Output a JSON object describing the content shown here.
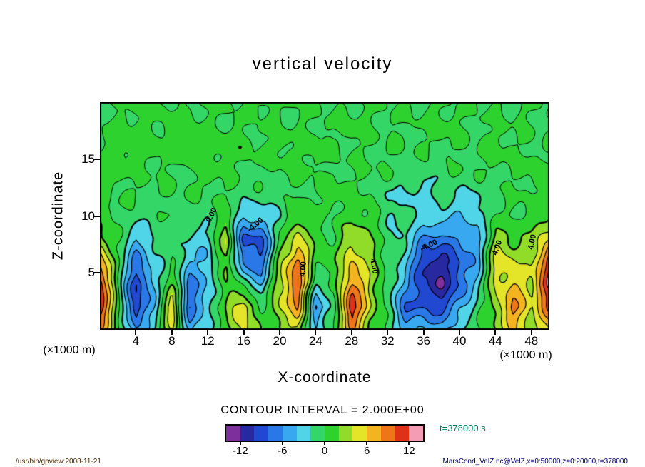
{
  "page": {
    "background": "#ffffff",
    "text_color": "#000000"
  },
  "title": "vertical velocity",
  "axes": {
    "x_label": "X-coordinate",
    "y_label": "Z-coordinate",
    "x_unit": "(×1000 m)",
    "y_unit": "(×1000 m)",
    "x_ticks": [
      4,
      8,
      12,
      16,
      20,
      24,
      28,
      32,
      36,
      40,
      44,
      48
    ],
    "y_ticks": [
      5,
      10,
      15
    ],
    "x_range": [
      0,
      50
    ],
    "z_range": [
      0,
      20
    ]
  },
  "contour_info": "CONTOUR INTERVAL = 2.000E+00",
  "time_label": "t=378000 s",
  "time_label_color": "#007a5e",
  "footer_left": "/usr/bin/gpview  2008-11-21",
  "footer_left_color": "#4a2a00",
  "footer_right": "MarsCond_VelZ.nc@VelZ,x=0:50000,z=0:20000,t=378000",
  "footer_right_color": "#000066",
  "colorbar": {
    "min": -14,
    "max": 14,
    "interval": 2,
    "colors": [
      "#7d2f9c",
      "#2828a0",
      "#2048d0",
      "#2a78e8",
      "#38a8f0",
      "#50d4e8",
      "#34d668",
      "#2ed22e",
      "#90dc28",
      "#e4e428",
      "#f4b420",
      "#ee7618",
      "#e03018",
      "#f49cb4"
    ],
    "ticks": [
      {
        "value": -12,
        "label": "-12"
      },
      {
        "value": -6,
        "label": "-6"
      },
      {
        "value": 0,
        "label": "0"
      },
      {
        "value": 6,
        "label": "6"
      },
      {
        "value": 12,
        "label": "12"
      }
    ]
  },
  "chart_data": {
    "type": "heatmap",
    "render_style": "filled-contour",
    "title": "vertical velocity",
    "xlabel": "X-coordinate (×1000 m)",
    "ylabel": "Z-coordinate (×1000 m)",
    "contour_interval": 2.0,
    "contour_levels": [
      -12,
      -10,
      -8,
      -6,
      -4,
      -2,
      0,
      2,
      4,
      6,
      8,
      10,
      12
    ],
    "x": [
      0,
      2,
      4,
      6,
      8,
      10,
      12,
      14,
      16,
      18,
      20,
      22,
      24,
      26,
      28,
      30,
      32,
      34,
      36,
      38,
      40,
      42,
      44,
      46,
      48,
      50
    ],
    "z": [
      0,
      2,
      4,
      6,
      8,
      10,
      12,
      14,
      16,
      18,
      20
    ],
    "values": [
      [
        8,
        1,
        -6,
        -2,
        4,
        -5,
        -2,
        1,
        5,
        1,
        2,
        4,
        -4,
        0,
        8,
        2,
        0,
        -5,
        -4,
        -5,
        -2,
        0,
        2,
        6,
        3,
        6
      ],
      [
        12,
        1,
        -10,
        -4,
        6,
        -8,
        -3,
        2,
        6,
        -1,
        4,
        8,
        -6,
        -1,
        12,
        4,
        -1,
        -8,
        -8,
        -9,
        -5,
        -1,
        3,
        9,
        4,
        10
      ],
      [
        12,
        0,
        -10,
        -4,
        2,
        -7,
        -4,
        2,
        -1,
        -4,
        4,
        10,
        -2,
        0,
        9,
        4,
        -1,
        -5,
        -10,
        -12,
        -8,
        -3,
        4,
        6,
        4,
        13
      ],
      [
        8,
        0,
        -7,
        -3,
        0,
        -4,
        -4,
        3,
        -7,
        -8,
        3,
        9,
        1,
        1,
        6,
        3,
        0,
        -3,
        -10,
        -11,
        -8,
        -5,
        5,
        4,
        3,
        12
      ],
      [
        3,
        0,
        -4,
        -2,
        -1,
        -2,
        -3,
        4,
        -9,
        -8,
        0,
        5,
        1,
        0,
        4,
        2,
        -1,
        -2,
        -6,
        -7,
        -6,
        -5,
        3,
        2,
        2,
        6
      ],
      [
        1,
        0,
        -1,
        -1,
        0,
        -1,
        -1,
        1,
        -4,
        -3,
        -2,
        2,
        0,
        0,
        1,
        1,
        -2,
        -1,
        -3,
        -3,
        -4,
        -3,
        0,
        0,
        1,
        2
      ],
      [
        0,
        0,
        0,
        0,
        0,
        0,
        0,
        0,
        -1,
        -1,
        -1,
        0,
        0,
        1,
        0,
        0,
        -2,
        -2,
        -3,
        -1,
        -2,
        -2,
        -1,
        0,
        0,
        1
      ],
      [
        1,
        1,
        0,
        0,
        0,
        0,
        1,
        0,
        0,
        0,
        0,
        1,
        0,
        0,
        0,
        0,
        0,
        -1,
        -1,
        -1,
        0,
        0,
        0,
        0,
        1,
        0
      ],
      [
        0,
        1,
        1,
        1,
        0,
        1,
        1,
        1,
        1,
        0,
        1,
        0,
        1,
        0,
        0,
        0,
        0,
        0,
        0,
        0,
        0,
        0,
        1,
        0,
        0,
        0
      ],
      [
        0,
        0,
        1,
        0,
        1,
        1,
        0,
        0,
        0,
        0,
        0,
        0,
        0,
        0,
        1,
        0,
        0,
        0,
        0,
        1,
        0,
        0,
        0,
        0,
        0,
        0
      ],
      [
        0,
        0,
        0,
        0,
        0,
        0,
        0,
        0,
        0,
        1,
        0,
        0,
        0,
        0,
        0,
        0,
        0,
        0,
        0,
        0,
        0,
        0,
        0,
        0,
        0,
        0
      ]
    ],
    "annotations": [
      {
        "text": "-0.00",
        "x": 12.4,
        "z": 10.0,
        "rot": -65
      },
      {
        "text": "-4.00",
        "x": 17.3,
        "z": 9.2,
        "rot": -40
      },
      {
        "text": "4.00",
        "x": 22.6,
        "z": 5.3,
        "rot": -85
      },
      {
        "text": "4.00",
        "x": 30.5,
        "z": 5.6,
        "rot": 80
      },
      {
        "text": "-4.00",
        "x": 36.6,
        "z": 7.4,
        "rot": -25
      },
      {
        "text": "4.00",
        "x": 44.2,
        "z": 7.2,
        "rot": -70
      },
      {
        "text": "4.00",
        "x": 48.1,
        "z": 7.7,
        "rot": -78
      }
    ]
  }
}
